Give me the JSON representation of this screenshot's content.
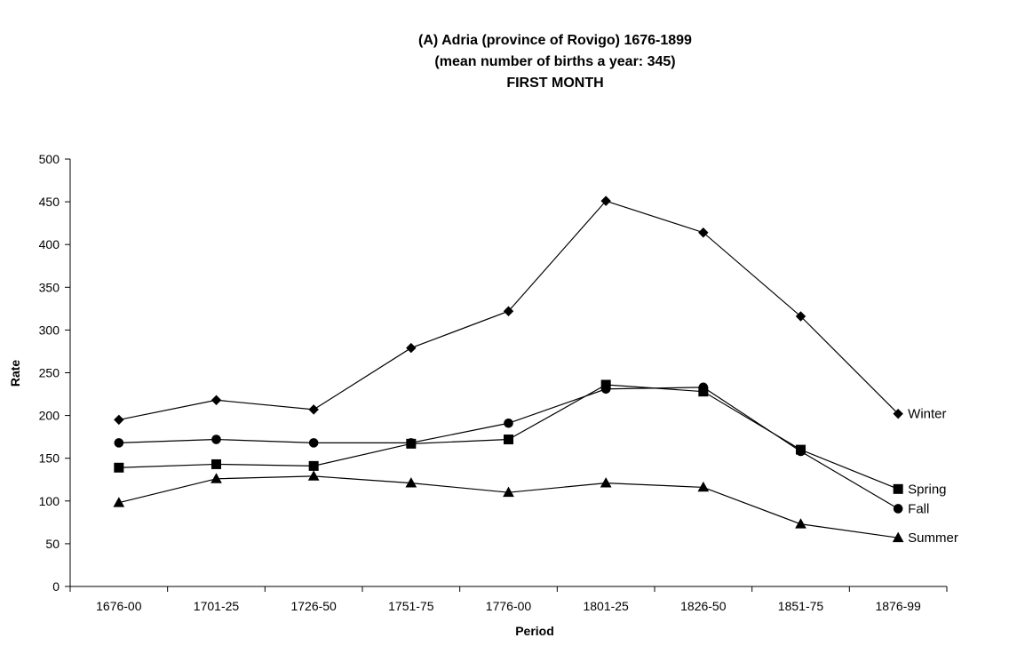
{
  "chart_data": {
    "type": "line",
    "title": [
      "(A) Adria (province of Rovigo) 1676-1899",
      "(mean number of births a year: 345)",
      "FIRST MONTH"
    ],
    "xlabel": "Period",
    "ylabel": "Rate",
    "categories": [
      "1676-00",
      "1701-25",
      "1726-50",
      "1751-75",
      "1776-00",
      "1801-25",
      "1826-50",
      "1851-75",
      "1876-99"
    ],
    "ylim": [
      0,
      500
    ],
    "yticks": [
      0,
      50,
      100,
      150,
      200,
      250,
      300,
      350,
      400,
      450,
      500
    ],
    "grid": false,
    "legend": "inline labels at right end of each series",
    "series": [
      {
        "name": "Winter",
        "marker": "diamond",
        "values": [
          195,
          218,
          207,
          279,
          322,
          451,
          414,
          316,
          202
        ]
      },
      {
        "name": "Spring",
        "marker": "square",
        "values": [
          139,
          143,
          141,
          167,
          172,
          236,
          228,
          160,
          114
        ]
      },
      {
        "name": "Fall",
        "marker": "circle",
        "values": [
          168,
          172,
          168,
          168,
          191,
          231,
          233,
          158,
          91
        ]
      },
      {
        "name": "Summer",
        "marker": "triangle",
        "values": [
          98,
          126,
          129,
          121,
          110,
          121,
          116,
          73,
          57
        ]
      }
    ]
  }
}
